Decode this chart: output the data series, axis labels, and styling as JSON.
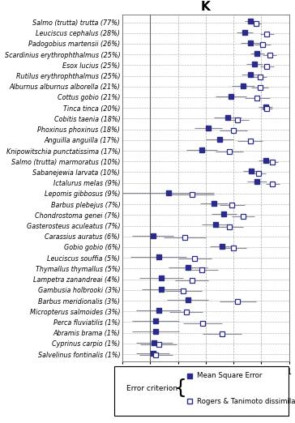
{
  "species": [
    "Salmo (trutta) trutta (77%)",
    "Leuciscus cephalus (28%)",
    "Padogobius martensii (26%)",
    "Scardinius erythrophthalmus (25%)",
    "Esox lucius (25%)",
    "Rutilus erythrophthalmus (25%)",
    "Alburnus alburnus alborella (21%)",
    "Cottus gobio (21%)",
    "Tinca tinca (20%)",
    "Cobitis taenia (18%)",
    "Phoxinus phoxinus (18%)",
    "Anguilla anguilla (17%)",
    "Knipowitschia punctatissima (17%)",
    "Salmo (trutta) marmoratus (10%)",
    "Sabanejewia larvata (10%)",
    "Ictalurus melas (9%)",
    "Lepomis gibbosus (9%)",
    "Barbus plebejus (7%)",
    "Chondrostoma genei (7%)",
    "Gasterosteus aculeatus (7%)",
    "Carassius auratus (6%)",
    "Gobio gobio (6%)",
    "Leuciscus souffia (5%)",
    "Thymallus thymallus (5%)",
    "Lampetra zanandreai (4%)",
    "Gambusia holbrooki (3%)",
    "Barbus meridionalis (3%)",
    "Micropterus salmoides (3%)",
    "Perca fluviatilis (1%)",
    "Abramis brama (1%)",
    "Cyprinus carpio (1%)",
    "Salvelinus fontinalis (1%)"
  ],
  "mse_values": [
    0.72,
    0.68,
    0.72,
    0.77,
    0.75,
    0.72,
    0.67,
    0.58,
    0.83,
    0.56,
    0.42,
    0.5,
    0.37,
    0.83,
    0.73,
    0.77,
    0.13,
    0.46,
    0.53,
    0.47,
    0.02,
    0.52,
    0.06,
    0.27,
    0.08,
    0.08,
    0.27,
    0.06,
    0.04,
    0.04,
    0.03,
    0.02
  ],
  "rt_values": [
    0.76,
    0.84,
    0.81,
    0.86,
    0.84,
    0.79,
    0.79,
    0.77,
    0.84,
    0.63,
    0.6,
    0.72,
    0.57,
    0.88,
    0.78,
    0.88,
    0.3,
    0.59,
    0.67,
    0.57,
    0.25,
    0.6,
    0.32,
    0.37,
    0.3,
    0.24,
    0.63,
    0.26,
    0.38,
    0.52,
    0.06,
    0.04
  ],
  "mse_ci_low": [
    0.68,
    0.62,
    0.65,
    0.72,
    0.69,
    0.66,
    0.59,
    0.47,
    0.78,
    0.46,
    0.32,
    0.4,
    0.26,
    0.78,
    0.67,
    0.7,
    -0.2,
    0.36,
    0.44,
    0.37,
    -0.13,
    0.43,
    -0.14,
    0.13,
    -0.08,
    -0.06,
    0.12,
    -0.1,
    -0.13,
    -0.13,
    -0.1,
    -0.1
  ],
  "mse_ci_high": [
    0.76,
    0.74,
    0.79,
    0.82,
    0.81,
    0.78,
    0.75,
    0.69,
    0.88,
    0.66,
    0.52,
    0.6,
    0.48,
    0.88,
    0.79,
    0.84,
    0.46,
    0.56,
    0.62,
    0.57,
    0.17,
    0.61,
    0.26,
    0.41,
    0.24,
    0.22,
    0.42,
    0.22,
    0.21,
    0.21,
    0.16,
    0.14
  ],
  "rt_ci_low": [
    0.72,
    0.79,
    0.75,
    0.81,
    0.79,
    0.74,
    0.73,
    0.68,
    0.8,
    0.55,
    0.5,
    0.63,
    0.47,
    0.84,
    0.73,
    0.83,
    0.14,
    0.5,
    0.59,
    0.47,
    0.1,
    0.51,
    0.2,
    0.25,
    0.18,
    0.11,
    0.5,
    0.14,
    0.24,
    0.38,
    -0.07,
    -0.08
  ],
  "rt_ci_high": [
    0.8,
    0.89,
    0.87,
    0.91,
    0.89,
    0.84,
    0.85,
    0.86,
    0.88,
    0.71,
    0.7,
    0.81,
    0.67,
    0.92,
    0.83,
    0.93,
    0.46,
    0.68,
    0.75,
    0.67,
    0.4,
    0.69,
    0.44,
    0.49,
    0.42,
    0.37,
    0.76,
    0.38,
    0.52,
    0.66,
    0.19,
    0.16
  ],
  "marker_color": "#2b2b8a",
  "ci_color": "#888899",
  "xlim": [
    -0.2,
    1.0
  ],
  "xticks": [
    -0.2,
    0,
    0.2,
    0.4,
    0.6,
    0.8,
    1
  ],
  "title": "K",
  "title_fontsize": 11,
  "label_fontsize": 5.8,
  "tick_fontsize": 7,
  "legend_title": "Error criterion",
  "legend_labels": [
    "Mean Square Error",
    "Rogers & Tanimoto dissimilarity"
  ]
}
